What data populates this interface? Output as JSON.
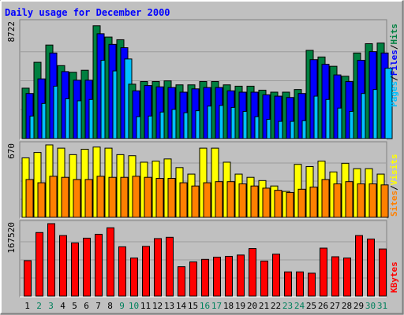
{
  "chart_data": {
    "type": "bar",
    "title": "Daily usage for December 2000",
    "categories": [
      "1",
      "2",
      "3",
      "4",
      "5",
      "6",
      "7",
      "8",
      "9",
      "10",
      "11",
      "12",
      "13",
      "14",
      "15",
      "16",
      "17",
      "18",
      "19",
      "20",
      "21",
      "22",
      "23",
      "24",
      "25",
      "26",
      "27",
      "28",
      "29",
      "30",
      "31"
    ],
    "weekend_days": [
      "2",
      "3",
      "9",
      "10",
      "16",
      "17",
      "23",
      "24",
      "30",
      "31"
    ],
    "ylim": [
      0,
      8722
    ],
    "panels": [
      {
        "name": "hits-files-pages",
        "max_label": "8722",
        "ymax": 8722,
        "legend": [
          "Pages",
          "Files",
          "Hits"
        ],
        "series": [
          {
            "name": "Hits",
            "color": "#008040",
            "values": [
              3800,
              5750,
              7050,
              5500,
              5000,
              5150,
              8500,
              7650,
              7450,
              4100,
              4300,
              4300,
              4350,
              4050,
              4050,
              4300,
              4300,
              4050,
              3950,
              3950,
              3650,
              3500,
              3500,
              3700,
              6650,
              6150,
              5450,
              4700,
              6450,
              7150,
              7200
            ]
          },
          {
            "name": "Files",
            "color": "#0000ff",
            "values": [
              3400,
              4500,
              6450,
              5050,
              4400,
              4400,
              7900,
              7100,
              6850,
              3600,
              4000,
              3900,
              3850,
              3500,
              3750,
              3850,
              3850,
              3600,
              3500,
              3500,
              3300,
              3200,
              3100,
              3400,
              5950,
              5600,
              4800,
              4300,
              5900,
              6550,
              6450
            ]
          },
          {
            "name": "Pages",
            "color": "#00c0ff",
            "values": [
              1700,
              2650,
              3950,
              3000,
              2850,
              2950,
              5900,
              5100,
              6000,
              1650,
              1700,
              2000,
              2200,
              1950,
              2100,
              2450,
              2500,
              2350,
              2050,
              1650,
              1450,
              1300,
              1300,
              1350,
              3200,
              2950,
              2300,
              2050,
              3400,
              3700,
              5300
            ]
          }
        ]
      },
      {
        "name": "visits-sites",
        "max_label": "670",
        "ymax": 670,
        "legend": [
          "Sites",
          "Visits"
        ],
        "series": [
          {
            "name": "Visits",
            "color": "#ffff00",
            "values": [
              550,
              600,
              670,
              640,
              580,
              630,
              650,
              640,
              580,
              570,
              510,
              520,
              540,
              460,
              400,
              640,
              640,
              510,
              400,
              370,
              340,
              290,
              240,
              490,
              470,
              520,
              420,
              500,
              450,
              450,
              400
            ]
          },
          {
            "name": "Sites",
            "color": "#ff8000",
            "values": [
              350,
              320,
              380,
              370,
              350,
              350,
              380,
              370,
              370,
              380,
              370,
              360,
              360,
              320,
              290,
              320,
              330,
              330,
              310,
              290,
              270,
              250,
              230,
              260,
              280,
              350,
              310,
              330,
              310,
              310,
              300
            ]
          }
        ]
      },
      {
        "name": "kbytes",
        "max_label": "167520",
        "ymax": 167520,
        "legend": [
          "KBytes"
        ],
        "series": [
          {
            "name": "KBytes",
            "color": "#ff0000",
            "values": [
              82000,
              147000,
              167520,
              140000,
              123000,
              134000,
              143000,
              158000,
              114000,
              88000,
              115000,
              133000,
              136000,
              68000,
              79000,
              85000,
              90000,
              92000,
              95000,
              110000,
              81000,
              97000,
              56000,
              56000,
              53000,
              111000,
              91000,
              88000,
              140000,
              132000,
              109000
            ]
          }
        ]
      }
    ]
  },
  "colors": {
    "background": "#c0c0c0",
    "title": "#0000ff",
    "border_dark": "#808080",
    "weekday_label": "#000000",
    "weekend_label": "#00805c",
    "bar_outline": "#000000"
  }
}
